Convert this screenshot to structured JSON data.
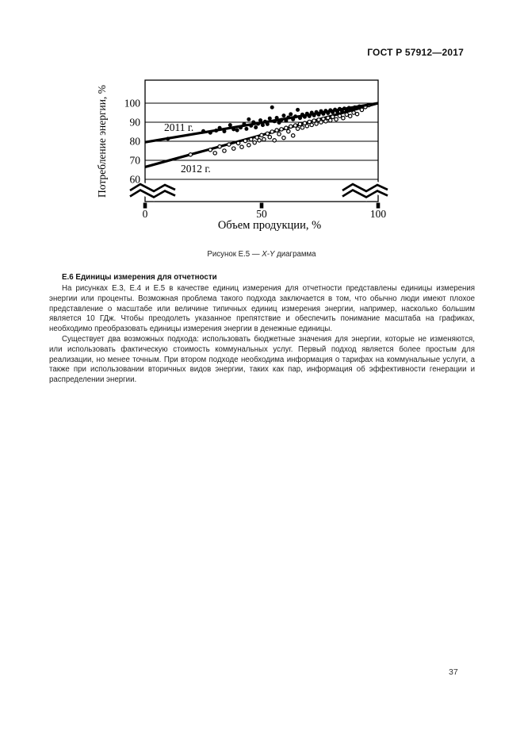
{
  "page": {
    "header": "ГОСТ Р 57912—2017",
    "page_number": "37"
  },
  "figure": {
    "caption": {
      "prefix": "Рисунок Е.5 — ",
      "xy": "X-Y",
      "suffix": " диаграмма"
    }
  },
  "section": {
    "heading": "Е.6 Единицы измерения для отчетности",
    "paragraphs": [
      "На рисунках Е.3, Е.4 и Е.5 в качестве единиц измерения для отчетности представлены единицы измерения энергии или проценты. Возможная проблема такого подхода заключается в том, что обычно люди имеют плохое представление о масштабе или величине типичных единиц измерения энергии, например, насколько большим является 10 ГДж. Чтобы преодолеть указанное препятствие и обеспечить понимание масштаба на графиках, необходимо преобразовать единицы измерения энергии в денежные единицы.",
      "Существует два возможных подхода: использовать бюджетные значения для энергии, которые не изменяются, или использовать фактическую стоимость коммунальных услуг. Первый подход является более простым для реализации, но менее точным. При втором подходе необходима информация о тарифах на коммунальные услуги, а также при использовании вторичных видов энергии, таких как пар, информация об эффективности генерации и распределении энергии."
    ]
  },
  "chart_data": {
    "type": "scatter",
    "title": "",
    "xlabel": "Объем продукции, %",
    "ylabel": "Потребление энергии, %",
    "xlim": [
      0,
      100
    ],
    "ylim": [
      60,
      100
    ],
    "x_ticks": [
      0,
      50,
      100
    ],
    "y_ticks": [
      100,
      90,
      80,
      70,
      60
    ],
    "axis_break": true,
    "grid": "horizontal",
    "line_color": "#000000",
    "series": [
      {
        "name": "2011 г.",
        "marker": "filled-circle",
        "trend": {
          "x1": 0,
          "y1": 79.5,
          "x2": 100,
          "y2": 100
        },
        "points": [
          [
            9.8,
            81.3
          ],
          [
            25,
            85.3
          ],
          [
            28,
            84.5
          ],
          [
            30.5,
            85.6
          ],
          [
            32,
            87
          ],
          [
            34,
            85.2
          ],
          [
            36.5,
            88.5
          ],
          [
            38,
            86.3
          ],
          [
            39.5,
            85.8
          ],
          [
            41,
            87.2
          ],
          [
            42.5,
            89
          ],
          [
            43.5,
            86.5
          ],
          [
            44.5,
            91.5
          ],
          [
            45.5,
            88.2
          ],
          [
            46.5,
            90
          ],
          [
            47.5,
            87.3
          ],
          [
            48.5,
            89.2
          ],
          [
            49.5,
            91
          ],
          [
            50.5,
            88.5
          ],
          [
            51.5,
            90.3
          ],
          [
            52.5,
            89
          ],
          [
            53.5,
            92
          ],
          [
            54.5,
            97.8
          ],
          [
            55.5,
            90.5
          ],
          [
            56.5,
            92.3
          ],
          [
            57.5,
            89.8
          ],
          [
            58.5,
            91.2
          ],
          [
            59.5,
            93.5
          ],
          [
            60.5,
            90.8
          ],
          [
            61.5,
            92.5
          ],
          [
            62.5,
            94.2
          ],
          [
            63.5,
            91.5
          ],
          [
            64.5,
            93
          ],
          [
            65.5,
            96.5
          ],
          [
            66.5,
            92.2
          ],
          [
            67.5,
            94
          ],
          [
            68.5,
            92.8
          ],
          [
            69.5,
            94.5
          ],
          [
            70.5,
            93.2
          ],
          [
            71.5,
            95
          ],
          [
            72.5,
            93.6
          ],
          [
            73.5,
            95.3
          ],
          [
            74.5,
            94
          ],
          [
            75.5,
            95.8
          ],
          [
            76.5,
            94.4
          ],
          [
            77.5,
            96
          ],
          [
            78.5,
            94.8
          ],
          [
            79.5,
            96.3
          ],
          [
            80.5,
            95.2
          ],
          [
            81.5,
            96.6
          ],
          [
            82.5,
            95.5
          ],
          [
            83.5,
            97
          ],
          [
            84.5,
            95.9
          ],
          [
            85.5,
            97.2
          ],
          [
            86.5,
            96.2
          ],
          [
            87.5,
            97.5
          ],
          [
            88.5,
            96.6
          ],
          [
            90,
            97.8
          ],
          [
            92,
            98.3
          ]
        ]
      },
      {
        "name": "2012 г.",
        "marker": "open-circle",
        "trend": {
          "x1": 0,
          "y1": 66.5,
          "x2": 100,
          "y2": 100
        },
        "points": [
          [
            19.5,
            73
          ],
          [
            28,
            75.5
          ],
          [
            30,
            73.8
          ],
          [
            32,
            77.2
          ],
          [
            34,
            75
          ],
          [
            36,
            78.3
          ],
          [
            38,
            76.2
          ],
          [
            40,
            79
          ],
          [
            41.5,
            77
          ],
          [
            43,
            80.2
          ],
          [
            44.5,
            78
          ],
          [
            45.5,
            81
          ],
          [
            47,
            79.3
          ],
          [
            48,
            82
          ],
          [
            49,
            80.5
          ],
          [
            50,
            83.2
          ],
          [
            51,
            81
          ],
          [
            52.5,
            84
          ],
          [
            53.5,
            82.2
          ],
          [
            54.5,
            85
          ],
          [
            55.5,
            80.5
          ],
          [
            56.5,
            85.8
          ],
          [
            57.5,
            83.8
          ],
          [
            58.5,
            86.3
          ],
          [
            59.5,
            81.8
          ],
          [
            60.5,
            87
          ],
          [
            61.5,
            85.2
          ],
          [
            62.5,
            87.8
          ],
          [
            63.5,
            83
          ],
          [
            64.5,
            88.3
          ],
          [
            65.5,
            86.6
          ],
          [
            66.5,
            89
          ],
          [
            67.5,
            87.2
          ],
          [
            68.5,
            89.5
          ],
          [
            69.5,
            88
          ],
          [
            70.5,
            90.2
          ],
          [
            71.5,
            88.6
          ],
          [
            72.5,
            90.8
          ],
          [
            73.5,
            89.2
          ],
          [
            74.5,
            91.3
          ],
          [
            75.5,
            90
          ],
          [
            76.5,
            91.8
          ],
          [
            77.5,
            90.5
          ],
          [
            78.5,
            92.3
          ],
          [
            79.5,
            91
          ],
          [
            80.5,
            92.8
          ],
          [
            82,
            91.5
          ],
          [
            83.5,
            93.3
          ],
          [
            85,
            92.2
          ],
          [
            86.5,
            94
          ],
          [
            88,
            93.2
          ],
          [
            89.5,
            95
          ],
          [
            91,
            94.3
          ],
          [
            93,
            96.5
          ],
          [
            94.5,
            98
          ],
          [
            96,
            99
          ]
        ]
      }
    ]
  }
}
